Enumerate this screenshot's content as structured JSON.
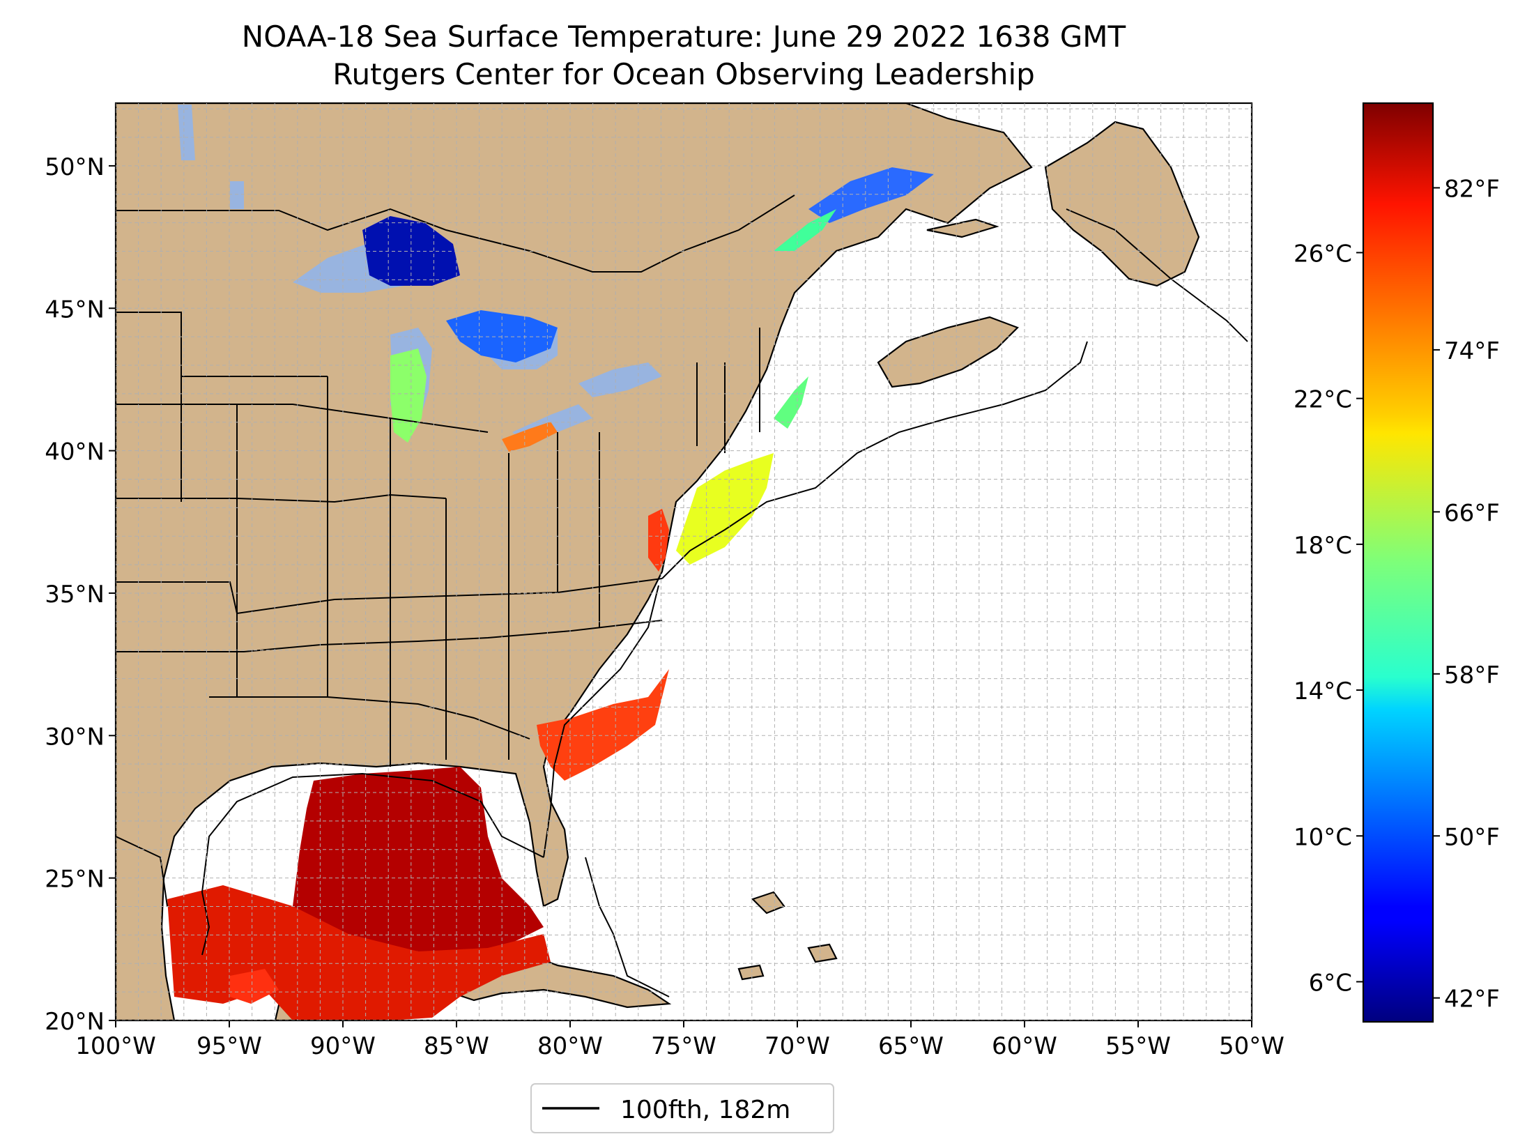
{
  "title": {
    "line1": "NOAA-18 Sea Surface Temperature: June 29 2022 1638 GMT",
    "line2": "Rutgers Center for Ocean Observing Leadership"
  },
  "map": {
    "lon_range": [
      -100,
      -50
    ],
    "lat_range": [
      20,
      52.2
    ],
    "lat_ticks": [
      {
        "value": 50,
        "label": "50°N"
      },
      {
        "value": 45,
        "label": "45°N"
      },
      {
        "value": 40,
        "label": "40°N"
      },
      {
        "value": 35,
        "label": "35°N"
      },
      {
        "value": 30,
        "label": "30°N"
      },
      {
        "value": 25,
        "label": "25°N"
      },
      {
        "value": 20,
        "label": "20°N"
      }
    ],
    "lon_ticks": [
      {
        "value": -100,
        "label": "100°W"
      },
      {
        "value": -95,
        "label": "95°W"
      },
      {
        "value": -90,
        "label": "90°W"
      },
      {
        "value": -85,
        "label": "85°W"
      },
      {
        "value": -80,
        "label": "80°W"
      },
      {
        "value": -75,
        "label": "75°W"
      },
      {
        "value": -70,
        "label": "70°W"
      },
      {
        "value": -65,
        "label": "65°W"
      },
      {
        "value": -60,
        "label": "60°W"
      },
      {
        "value": -55,
        "label": "55°W"
      },
      {
        "value": -50,
        "label": "50°W"
      }
    ],
    "gridlines": true,
    "colors": {
      "land": "#d2b48c",
      "lakes_no_data": "#98b4e0",
      "ocean_no_data": "#ffffff",
      "coastline": "#000000",
      "grid": "#b0b0b0"
    }
  },
  "legend": {
    "placement": "bottom-center",
    "label": "100fth, 182m"
  },
  "colorbar": {
    "colormap": "jet",
    "range_c": [
      4.9,
      30.1
    ],
    "celsius_ticks": [
      {
        "value": 6,
        "label": "6°C"
      },
      {
        "value": 10,
        "label": "10°C"
      },
      {
        "value": 14,
        "label": "14°C"
      },
      {
        "value": 18,
        "label": "18°C"
      },
      {
        "value": 22,
        "label": "22°C"
      },
      {
        "value": 26,
        "label": "26°C"
      }
    ],
    "fahrenheit_ticks": [
      {
        "value": 42,
        "label": "42°F"
      },
      {
        "value": 50,
        "label": "50°F"
      },
      {
        "value": 58,
        "label": "58°F"
      },
      {
        "value": 66,
        "label": "66°F"
      },
      {
        "value": 74,
        "label": "74°F"
      },
      {
        "value": 82,
        "label": "82°F"
      }
    ]
  }
}
